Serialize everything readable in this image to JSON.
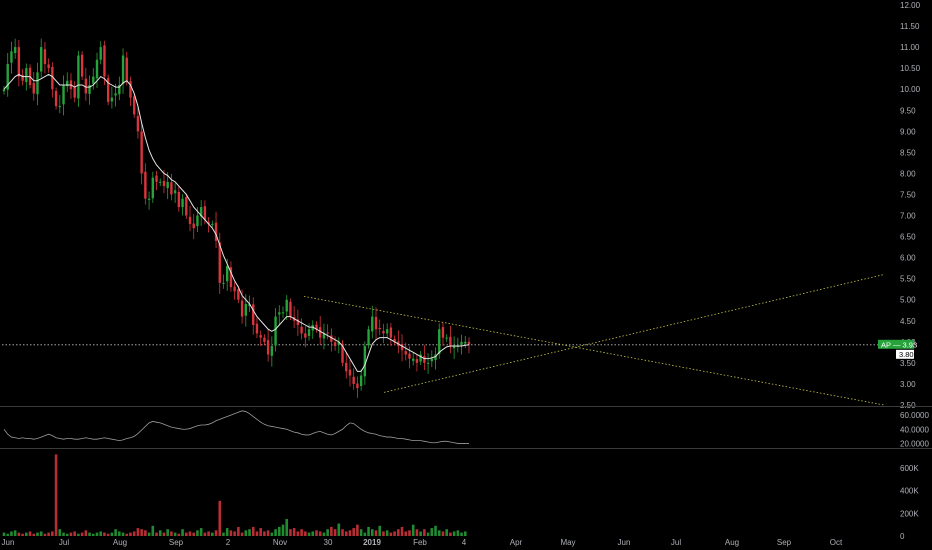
{
  "colors": {
    "background": "#000000",
    "up": "#26a33a",
    "down": "#d9353d",
    "ma_line": "#e6e6e6",
    "oscillator_line": "#9c9c9c",
    "trendline": "#c9c74a",
    "axis_text": "#aeb1b8",
    "pane_divider": "#3a3a3a",
    "price_line": "#bdbdbd"
  },
  "price_badges": [
    {
      "label": "AP",
      "value": "3.93",
      "color": "#26a33a",
      "text_color": "#ffffff"
    },
    {
      "label": "",
      "value": "3.80",
      "color": "#ffffff",
      "text_color": "#000000"
    }
  ],
  "chart_data": {
    "type": "line",
    "title": "",
    "price_pane": {
      "y_ticks": [
        "12.00",
        "11.50",
        "11.00",
        "10.50",
        "10.00",
        "9.50",
        "9.00",
        "8.50",
        "8.00",
        "7.50",
        "7.00",
        "6.50",
        "6.00",
        "5.50",
        "5.00",
        "4.50",
        "4.00",
        "3.50",
        "3.00",
        "2.50"
      ],
      "ylim": [
        2.5,
        12.0
      ],
      "series": [
        {
          "name": "",
          "kind": "candles",
          "t": [
            0,
            220
          ],
          "close": [
            10.0,
            10.6,
            10.9,
            11.0,
            10.3,
            10.2,
            10.5,
            10.1,
            9.9,
            10.4,
            11.0,
            10.6,
            10.5,
            10.0,
            9.6,
            9.6,
            10.1,
            10.2,
            10.0,
            9.8,
            10.8,
            10.3,
            9.9,
            10.1,
            10.3,
            10.7,
            11.0,
            10.3,
            9.7,
            9.8,
            9.9,
            10.1,
            10.8,
            10.2,
            9.8,
            9.4,
            9.0,
            8.0,
            7.4,
            7.4,
            7.9,
            7.8,
            7.8,
            7.7,
            7.8,
            7.5,
            7.6,
            7.2,
            7.4,
            7.0,
            6.8,
            6.7,
            7.0,
            7.2,
            6.9,
            6.8,
            6.8,
            6.4,
            5.4,
            5.4,
            5.8,
            5.3,
            5.2,
            5.0,
            4.6,
            4.9,
            4.9,
            4.4,
            4.2,
            4.1,
            4.0,
            3.7,
            3.9,
            4.6,
            4.7,
            4.7,
            5.0,
            4.6,
            4.5,
            4.4,
            4.2,
            4.1,
            4.3,
            4.4,
            4.3,
            4.1,
            4.2,
            4.2,
            4.0,
            3.9,
            4.0,
            3.5,
            3.3,
            3.2,
            3.0,
            2.9,
            3.2,
            3.9,
            4.3,
            4.6,
            4.3,
            4.3,
            4.2,
            4.3,
            4.1,
            4.0,
            3.9,
            3.8,
            3.7,
            3.6,
            3.6,
            3.5,
            3.7,
            3.5,
            3.5,
            3.6,
            3.7,
            4.3,
            4.1,
            4.1,
            3.9,
            3.9,
            3.9,
            4.0,
            4.0,
            3.93
          ]
        },
        {
          "name": "",
          "kind": "moving_average",
          "values": [
            10.0,
            10.1,
            10.2,
            10.3,
            10.35,
            10.3,
            10.3,
            10.3,
            10.2,
            10.2,
            10.25,
            10.3,
            10.35,
            10.3,
            10.2,
            10.1,
            10.1,
            10.1,
            10.1,
            10.05,
            10.1,
            10.1,
            10.05,
            10.05,
            10.1,
            10.2,
            10.3,
            10.25,
            10.15,
            10.1,
            10.05,
            10.05,
            10.15,
            10.2,
            10.1,
            9.9,
            9.6,
            9.2,
            8.85,
            8.55,
            8.35,
            8.2,
            8.1,
            8.0,
            7.95,
            7.85,
            7.8,
            7.7,
            7.6,
            7.5,
            7.35,
            7.2,
            7.1,
            7.0,
            6.9,
            6.8,
            6.7,
            6.55,
            6.3,
            6.05,
            5.85,
            5.65,
            5.45,
            5.3,
            5.1,
            5.0,
            4.9,
            4.75,
            4.6,
            4.5,
            4.4,
            4.3,
            4.25,
            4.3,
            4.4,
            4.5,
            4.6,
            4.6,
            4.55,
            4.5,
            4.45,
            4.4,
            4.35,
            4.35,
            4.3,
            4.25,
            4.2,
            4.15,
            4.1,
            4.05,
            4.0,
            3.9,
            3.75,
            3.6,
            3.45,
            3.3,
            3.3,
            3.45,
            3.7,
            3.95,
            4.05,
            4.1,
            4.1,
            4.1,
            4.05,
            4.0,
            3.95,
            3.9,
            3.85,
            3.8,
            3.75,
            3.7,
            3.65,
            3.6,
            3.6,
            3.62,
            3.65,
            3.75,
            3.82,
            3.88,
            3.9,
            3.9,
            3.9,
            3.9,
            3.92,
            3.93
          ]
        }
      ],
      "trendlines": [
        {
          "from": [
            75,
            5.08
          ],
          "to": [
            220,
            2.5
          ]
        },
        {
          "from": [
            95,
            2.8
          ],
          "to": [
            220,
            5.6
          ]
        }
      ],
      "horizontal_price_line": 3.93
    },
    "oscillator_pane": {
      "y_ticks": [
        "60.0000",
        "40.0000",
        "20.0000"
      ],
      "ylim": [
        15,
        70
      ],
      "values": [
        40,
        33,
        29,
        28,
        27,
        28,
        27,
        27,
        26,
        27,
        29,
        31,
        33,
        31,
        28,
        27,
        26,
        27,
        27,
        26,
        26,
        27,
        28,
        27,
        26,
        26,
        27,
        28,
        27,
        26,
        25,
        24,
        25,
        27,
        28,
        30,
        34,
        39,
        44,
        49,
        51,
        50,
        49,
        47,
        45,
        43,
        42,
        41,
        40,
        40,
        41,
        43,
        45,
        46,
        46,
        47,
        49,
        52,
        54,
        56,
        58,
        60,
        62,
        64,
        66,
        65,
        62,
        58,
        54,
        50,
        47,
        45,
        44,
        43,
        42,
        41,
        40,
        38,
        36,
        35,
        33,
        32,
        32,
        34,
        36,
        37,
        35,
        33,
        32,
        34,
        37,
        40,
        45,
        49,
        48,
        44,
        40,
        37,
        35,
        34,
        33,
        31,
        30,
        29,
        29,
        28,
        27,
        27,
        26,
        25,
        24,
        24,
        24,
        23,
        22,
        21,
        21,
        22,
        23,
        23,
        22,
        21,
        20,
        20,
        20,
        20
      ]
    },
    "volume_pane": {
      "y_ticks": [
        "600K",
        "400K",
        "200K",
        "0"
      ],
      "ylim": [
        0,
        750000
      ],
      "values": [
        30000,
        20000,
        40000,
        50000,
        30000,
        20000,
        30000,
        40000,
        20000,
        30000,
        40000,
        20000,
        30000,
        40000,
        720000,
        60000,
        30000,
        20000,
        30000,
        40000,
        20000,
        30000,
        50000,
        30000,
        20000,
        30000,
        40000,
        30000,
        20000,
        30000,
        60000,
        40000,
        30000,
        20000,
        30000,
        40000,
        70000,
        60000,
        50000,
        30000,
        90000,
        30000,
        50000,
        30000,
        60000,
        40000,
        30000,
        20000,
        60000,
        30000,
        40000,
        30000,
        50000,
        70000,
        30000,
        40000,
        30000,
        50000,
        310000,
        30000,
        70000,
        50000,
        40000,
        80000,
        30000,
        50000,
        60000,
        80000,
        40000,
        70000,
        40000,
        50000,
        30000,
        60000,
        80000,
        100000,
        150000,
        60000,
        70000,
        40000,
        60000,
        40000,
        30000,
        40000,
        50000,
        40000,
        30000,
        60000,
        80000,
        60000,
        110000,
        60000,
        40000,
        50000,
        70000,
        100000,
        60000,
        30000,
        80000,
        60000,
        50000,
        90000,
        40000,
        50000,
        30000,
        40000,
        60000,
        80000,
        40000,
        50000,
        100000,
        60000,
        40000,
        60000,
        30000,
        70000,
        90000,
        50000,
        40000,
        60000,
        30000,
        40000,
        50000,
        30000,
        40000
      ]
    },
    "x_ticks": [
      {
        "label": "Jun",
        "t": 1
      },
      {
        "label": "Jul",
        "t": 15
      },
      {
        "label": "Aug",
        "t": 29
      },
      {
        "label": "Sep",
        "t": 43
      },
      {
        "label": "2",
        "t": 56
      },
      {
        "label": "Nov",
        "t": 69
      },
      {
        "label": "30",
        "t": 81
      },
      {
        "label": "2019",
        "t": 92
      },
      {
        "label": "Feb",
        "t": 104
      },
      {
        "label": "4",
        "t": 115
      },
      {
        "label": "Apr",
        "t": 128
      },
      {
        "label": "May",
        "t": 141
      },
      {
        "label": "Jun",
        "t": 155
      },
      {
        "label": "Jul",
        "t": 168
      },
      {
        "label": "Aug",
        "t": 182
      },
      {
        "label": "Sep",
        "t": 195
      },
      {
        "label": "Oct",
        "t": 208
      }
    ]
  }
}
